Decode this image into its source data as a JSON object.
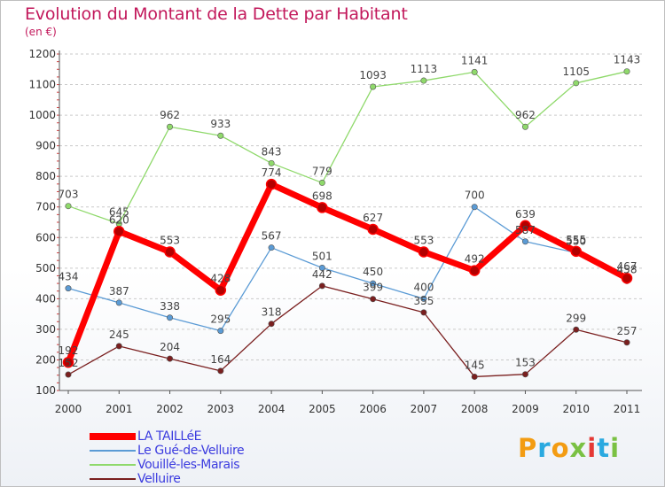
{
  "header": {
    "title": "Evolution du Montant de la Dette par Habitant",
    "subtitle": "(en €)"
  },
  "brand": {
    "text": "Proxiti"
  },
  "chart_data": {
    "type": "line",
    "title": "Evolution du Montant de la Dette par Habitant",
    "subtitle": "(en €)",
    "xlabel": "",
    "ylabel": "",
    "x": [
      "2000",
      "2001",
      "2002",
      "2003",
      "2004",
      "2005",
      "2006",
      "2007",
      "2008",
      "2009",
      "2010",
      "2011"
    ],
    "ylim": [
      100,
      1200
    ],
    "yticks": [
      100,
      200,
      300,
      400,
      500,
      600,
      700,
      800,
      900,
      1000,
      1100,
      1200
    ],
    "grid": "horizontal-dashed",
    "legend_position": "bottom-left",
    "series": [
      {
        "name": "LA TAILLéE",
        "color": "#ff0000",
        "values": [
          192,
          620,
          553,
          428,
          774,
          698,
          627,
          553,
          492,
          639,
          555,
          467
        ]
      },
      {
        "name": "Le Gué-de-Velluire",
        "color": "#5b9bd5",
        "values": [
          434,
          387,
          338,
          295,
          567,
          501,
          450,
          400,
          700,
          587,
          550,
          458
        ]
      },
      {
        "name": "Vouillé-les-Marais",
        "color": "#8fd96b",
        "values": [
          703,
          645,
          962,
          933,
          843,
          779,
          1093,
          1113,
          1141,
          962,
          1105,
          1143
        ]
      },
      {
        "name": "Velluire",
        "color": "#7a1f1f",
        "values": [
          152,
          245,
          204,
          164,
          318,
          442,
          399,
          355,
          145,
          153,
          299,
          257
        ]
      }
    ]
  }
}
